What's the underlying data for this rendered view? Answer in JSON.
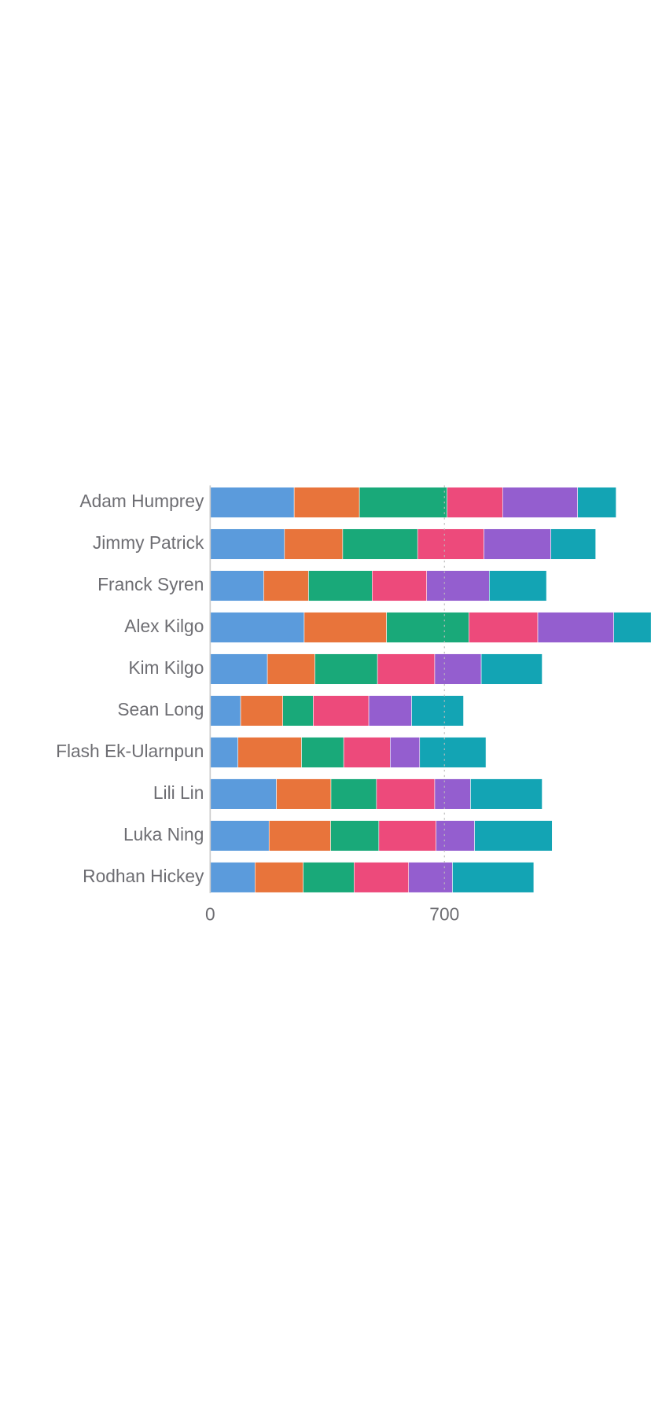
{
  "chart_data": {
    "type": "stacked-bar-horizontal",
    "categories": [
      "Adam Humprey",
      "Jimmy Patrick",
      "Franck Syren",
      "Alex Kilgo",
      "Kim Kilgo",
      "Sean Long",
      "Flash Ek-Ularnpun",
      "Lili Lin",
      "Luka Ning",
      "Rodhan Hickey"
    ],
    "series": [
      {
        "color": "#5b9bdc",
        "values": [
          251,
          222,
          160,
          281,
          171,
          91,
          83,
          198,
          176,
          134
        ]
      },
      {
        "color": "#e8743b",
        "values": [
          195,
          174,
          134,
          246,
          142,
          126,
          190,
          163,
          184,
          144
        ]
      },
      {
        "color": "#19a979",
        "values": [
          262,
          224,
          190,
          246,
          187,
          91,
          126,
          136,
          144,
          152
        ]
      },
      {
        "color": "#ed4a7b",
        "values": [
          166,
          198,
          163,
          206,
          171,
          166,
          139,
          174,
          171,
          163
        ]
      },
      {
        "color": "#945ecf",
        "values": [
          224,
          200,
          187,
          227,
          139,
          128,
          88,
          107,
          115,
          131
        ]
      },
      {
        "color": "#13a4b4",
        "values": [
          115,
          134,
          171,
          160,
          182,
          155,
          198,
          214,
          232,
          243
        ]
      }
    ],
    "xlim": [
      0,
      1317
    ],
    "xticks": [
      0,
      700
    ],
    "grid": true
  }
}
